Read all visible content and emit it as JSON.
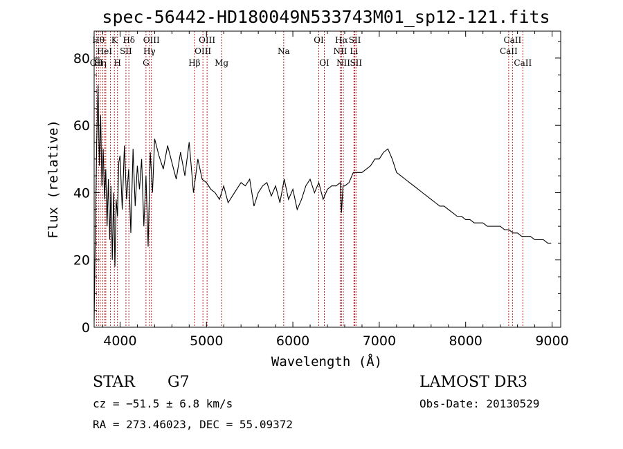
{
  "chart_data": {
    "type": "line",
    "title": "spec-56442-HD180049N533743M01_sp12-121.fits",
    "xlabel": "Wavelength (Å)",
    "ylabel": "Flux (relative)",
    "xlim": [
      3700,
      9100
    ],
    "ylim": [
      0,
      88
    ],
    "xticks": [
      4000,
      5000,
      6000,
      7000,
      8000,
      9000
    ],
    "yticks": [
      0,
      20,
      40,
      60,
      80
    ],
    "line_color": "#000000",
    "marker_color": "#b22222",
    "series": [
      {
        "name": "flux",
        "x": [
          3700,
          3715,
          3730,
          3745,
          3760,
          3775,
          3790,
          3805,
          3820,
          3835,
          3850,
          3865,
          3880,
          3895,
          3910,
          3925,
          3940,
          3955,
          3970,
          3985,
          4000,
          4025,
          4050,
          4075,
          4100,
          4125,
          4150,
          4175,
          4200,
          4225,
          4250,
          4275,
          4300,
          4325,
          4350,
          4375,
          4400,
          4450,
          4500,
          4550,
          4600,
          4650,
          4700,
          4750,
          4800,
          4850,
          4900,
          4950,
          5000,
          5050,
          5100,
          5150,
          5200,
          5250,
          5300,
          5350,
          5400,
          5450,
          5500,
          5550,
          5600,
          5650,
          5700,
          5750,
          5800,
          5850,
          5900,
          5950,
          6000,
          6050,
          6100,
          6150,
          6200,
          6250,
          6300,
          6350,
          6400,
          6450,
          6500,
          6550,
          6563,
          6580,
          6600,
          6650,
          6700,
          6750,
          6800,
          6850,
          6900,
          6950,
          7000,
          7050,
          7100,
          7150,
          7200,
          7250,
          7300,
          7350,
          7400,
          7450,
          7500,
          7550,
          7600,
          7650,
          7700,
          7750,
          7800,
          7850,
          7900,
          7950,
          8000,
          8050,
          8100,
          8150,
          8200,
          8250,
          8300,
          8350,
          8400,
          8450,
          8500,
          8550,
          8600,
          8650,
          8700,
          8750,
          8800,
          8850,
          8900,
          8950,
          8990
        ],
        "y": [
          2,
          30,
          55,
          72,
          48,
          63,
          42,
          53,
          38,
          47,
          30,
          44,
          26,
          42,
          20,
          40,
          18,
          38,
          33,
          49,
          51,
          35,
          54,
          38,
          47,
          28,
          53,
          36,
          48,
          41,
          50,
          30,
          45,
          24,
          52,
          40,
          56,
          51,
          47,
          54,
          49,
          44,
          52,
          45,
          55,
          40,
          50,
          44,
          43,
          41,
          40,
          38,
          42,
          37,
          39,
          41,
          43,
          42,
          44,
          36,
          40,
          42,
          43,
          39,
          42,
          37,
          44,
          38,
          41,
          35,
          38,
          42,
          44,
          40,
          43,
          38,
          41,
          42,
          42,
          43,
          34,
          42,
          42,
          43,
          46,
          46,
          46,
          47,
          48,
          50,
          50,
          52,
          53,
          50,
          46,
          45,
          44,
          43,
          42,
          41,
          40,
          39,
          38,
          37,
          36,
          36,
          35,
          34,
          33,
          33,
          32,
          32,
          31,
          31,
          31,
          30,
          30,
          30,
          30,
          29,
          29,
          28,
          28,
          27,
          27,
          27,
          26,
          26,
          26,
          25,
          25
        ]
      }
    ],
    "line_markers": [
      {
        "x": 3727,
        "label": "OII",
        "row": 3
      },
      {
        "x": 3750,
        "label": "Hθ",
        "row": 1
      },
      {
        "x": 3771,
        "label": "Hη",
        "row": 3
      },
      {
        "x": 3798,
        "label": "",
        "row": 0
      },
      {
        "x": 3820,
        "label": "HeI",
        "row": 2
      },
      {
        "x": 3835,
        "label": "",
        "row": 0
      },
      {
        "x": 3889,
        "label": "",
        "row": 0
      },
      {
        "x": 3934,
        "label": "K",
        "row": 1
      },
      {
        "x": 3970,
        "label": "H",
        "row": 3
      },
      {
        "x": 4068,
        "label": "SII",
        "row": 2
      },
      {
        "x": 4102,
        "label": "Hδ",
        "row": 1
      },
      {
        "x": 4300,
        "label": "G",
        "row": 3
      },
      {
        "x": 4340,
        "label": "Hγ",
        "row": 2
      },
      {
        "x": 4363,
        "label": "OIII",
        "row": 1
      },
      {
        "x": 4861,
        "label": "Hβ",
        "row": 3
      },
      {
        "x": 4959,
        "label": "OIII",
        "row": 2
      },
      {
        "x": 5007,
        "label": "OIII",
        "row": 1
      },
      {
        "x": 5175,
        "label": "Mg",
        "row": 3
      },
      {
        "x": 5894,
        "label": "Na",
        "row": 2
      },
      {
        "x": 6300,
        "label": "OI",
        "row": 1
      },
      {
        "x": 6364,
        "label": "OI",
        "row": 3
      },
      {
        "x": 6548,
        "label": "NII",
        "row": 2
      },
      {
        "x": 6563,
        "label": "Hα",
        "row": 1
      },
      {
        "x": 6584,
        "label": "NII",
        "row": 3
      },
      {
        "x": 6707,
        "label": "Li",
        "row": 2
      },
      {
        "x": 6717,
        "label": "SII",
        "row": 1
      },
      {
        "x": 6731,
        "label": "SII",
        "row": 3
      },
      {
        "x": 8498,
        "label": "CaII",
        "row": 2
      },
      {
        "x": 8542,
        "label": "CaII",
        "row": 1
      },
      {
        "x": 8662,
        "label": "CaII",
        "row": 3
      }
    ]
  },
  "info": {
    "class": "STAR",
    "subclass": "G7",
    "survey": "LAMOST DR3",
    "redshift": "cz = −51.5 ± 6.8 km/s",
    "obs_date": "Obs-Date: 20130529",
    "coords": "RA = 273.46023, DEC =  55.09372"
  }
}
